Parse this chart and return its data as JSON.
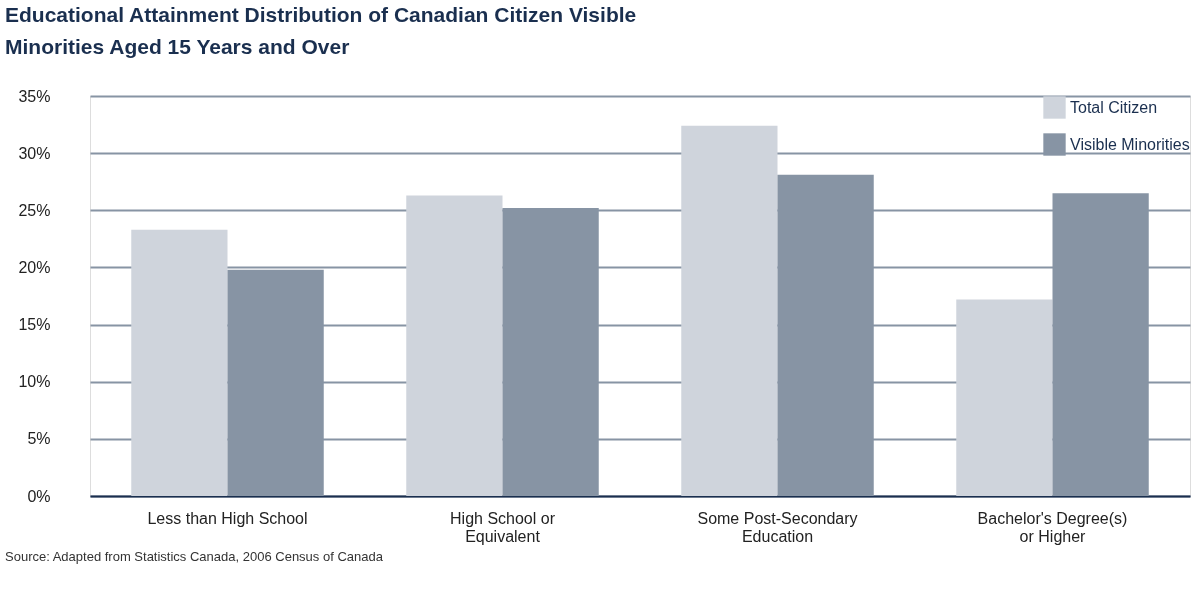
{
  "chart_data": {
    "type": "bar",
    "title": [
      "Educational Attainment Distribution of Canadian Citizen Visible",
      "Minorities Aged 15 Years and Over"
    ],
    "categories": [
      "Less than High School",
      "High School or Equivalent",
      "Some Post-Secondary Education",
      "Bachelor's Degree(s) or Higher"
    ],
    "series": [
      {
        "name": "Total Citizen",
        "color": "#cfd4dc",
        "values": [
          23.3,
          26.3,
          32.4,
          17.2
        ]
      },
      {
        "name": "Visible Minorities",
        "color": "#8794a4",
        "values": [
          19.8,
          25.2,
          28.1,
          26.5
        ]
      }
    ],
    "ylim": [
      0,
      35
    ],
    "yticks": [
      {
        "value": 0,
        "label": "0%"
      },
      {
        "value": 5,
        "label": "5%"
      },
      {
        "value": 10,
        "label": "10%"
      },
      {
        "value": 15,
        "label": "15%"
      },
      {
        "value": 20,
        "label": "20%"
      },
      {
        "value": 25,
        "label": "25%"
      },
      {
        "value": 30,
        "label": "30%"
      },
      {
        "value": 35,
        "label": "35%"
      }
    ],
    "grid": "y",
    "legend": "top right",
    "annotations": [
      "Source:  Adapted from Statistics Canada, 2006 Census of Canada"
    ]
  }
}
